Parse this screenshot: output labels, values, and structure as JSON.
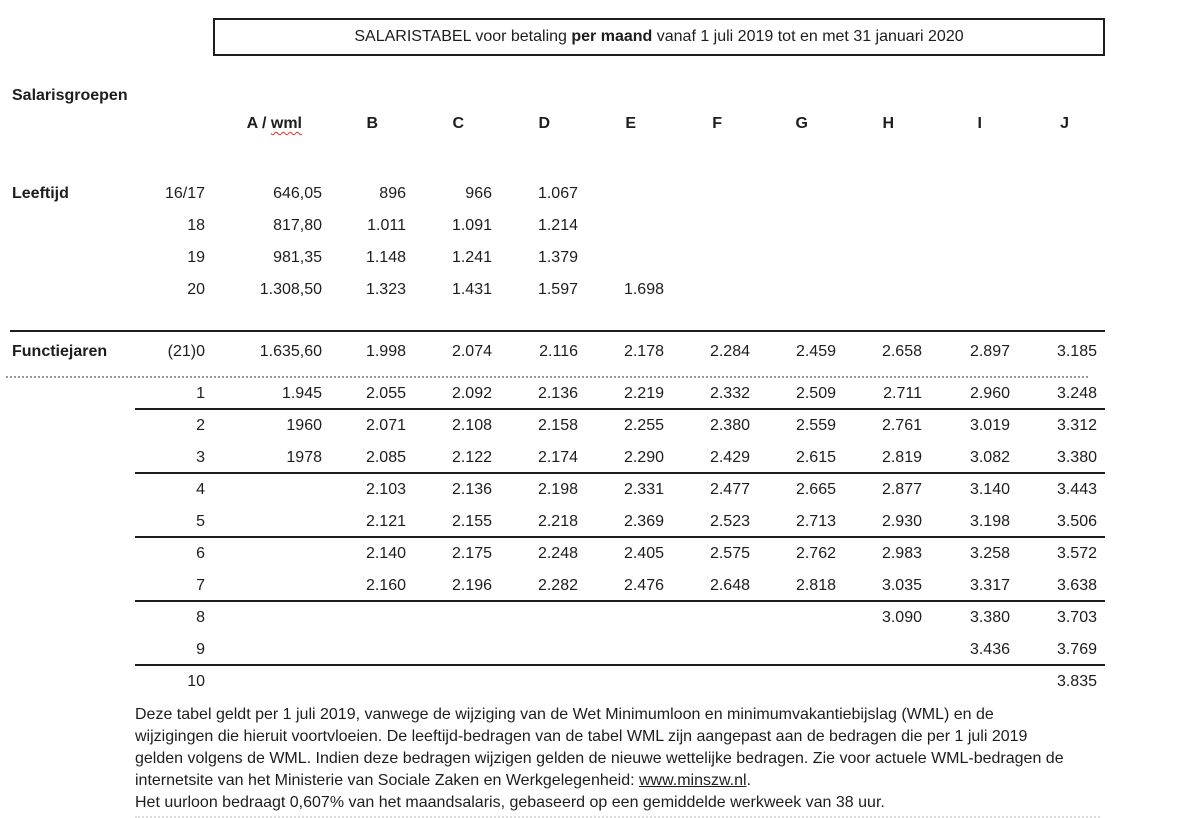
{
  "title": {
    "prefix": "SALARISTABEL voor betaling ",
    "bold": "per maand",
    "suffix": " vanaf 1 juli 2019 tot en met 31 januari 2020"
  },
  "labels": {
    "salarisgroepen": "Salarisgroepen",
    "leeftijd": "Leeftijd",
    "functiejaren": "Functiejaren"
  },
  "columns": {
    "a_prefix": "A / ",
    "a_wml": "wml",
    "letters": [
      "B",
      "C",
      "D",
      "E",
      "F",
      "G",
      "H",
      "I",
      "J"
    ]
  },
  "leeftijd": {
    "rows": [
      {
        "age": "16/17",
        "values": [
          "646,05",
          "896",
          "966",
          "1.067",
          "",
          "",
          "",
          "",
          "",
          ""
        ]
      },
      {
        "age": "18",
        "values": [
          "817,80",
          "1.011",
          "1.091",
          "1.214",
          "",
          "",
          "",
          "",
          "",
          ""
        ]
      },
      {
        "age": "19",
        "values": [
          "981,35",
          "1.148",
          "1.241",
          "1.379",
          "",
          "",
          "",
          "",
          "",
          ""
        ]
      },
      {
        "age": "20",
        "values": [
          "1.308,50",
          "1.323",
          "1.431",
          "1.597",
          "1.698",
          "",
          "",
          "",
          "",
          ""
        ]
      }
    ]
  },
  "functiejaren": {
    "rows": [
      {
        "year": "(21)0",
        "values": [
          "1.635,60",
          "1.998",
          "2.074",
          "2.116",
          "2.178",
          "2.284",
          "2.459",
          "2.658",
          "2.897",
          "3.185"
        ]
      },
      {
        "year": "1",
        "values": [
          "1.945",
          "2.055",
          "2.092",
          "2.136",
          "2.219",
          "2.332",
          "2.509",
          "2.711",
          "2.960",
          "3.248"
        ]
      },
      {
        "year": "2",
        "values": [
          "1960",
          "2.071",
          "2.108",
          "2.158",
          "2.255",
          "2.380",
          "2.559",
          "2.761",
          "3.019",
          "3.312"
        ]
      },
      {
        "year": "3",
        "values": [
          "1978",
          "2.085",
          "2.122",
          "2.174",
          "2.290",
          "2.429",
          "2.615",
          "2.819",
          "3.082",
          "3.380"
        ]
      },
      {
        "year": "4",
        "values": [
          "",
          "2.103",
          "2.136",
          "2.198",
          "2.331",
          "2.477",
          "2.665",
          "2.877",
          "3.140",
          "3.443"
        ]
      },
      {
        "year": "5",
        "values": [
          "",
          "2.121",
          "2.155",
          "2.218",
          "2.369",
          "2.523",
          "2.713",
          "2.930",
          "3.198",
          "3.506"
        ]
      },
      {
        "year": "6",
        "values": [
          "",
          "2.140",
          "2.175",
          "2.248",
          "2.405",
          "2.575",
          "2.762",
          "2.983",
          "3.258",
          "3.572"
        ]
      },
      {
        "year": "7",
        "values": [
          "",
          "2.160",
          "2.196",
          "2.282",
          "2.476",
          "2.648",
          "2.818",
          "3.035",
          "3.317",
          "3.638"
        ]
      },
      {
        "year": "8",
        "values": [
          "",
          "",
          "",
          "",
          "",
          "",
          "",
          "3.090",
          "3.380",
          "3.703"
        ]
      },
      {
        "year": "9",
        "values": [
          "",
          "",
          "",
          "",
          "",
          "",
          "",
          "",
          "3.436",
          "3.769"
        ]
      },
      {
        "year": "10",
        "values": [
          "",
          "",
          "",
          "",
          "",
          "",
          "",
          "",
          "",
          "3.835"
        ]
      }
    ],
    "rule_below_years": [
      "1",
      "3",
      "5",
      "7",
      "9"
    ]
  },
  "footer": {
    "line1": "Deze tabel geldt per 1 juli 2019, vanwege de wijziging van de Wet Minimumloon en minimumvakantiebijslag (WML) en de",
    "line2": "wijzigingen die hieruit voortvloeien. De leeftijd-bedragen van de tabel WML zijn aangepast aan de bedragen die per 1 juli 2019",
    "line3": "gelden volgens de WML. Indien deze bedragen wijzigen gelden de nieuwe wettelijke bedragen. Zie voor actuele WML-bedragen de",
    "line4_prefix": "internetsite van het Ministerie van Sociale Zaken en Werkgelegenheid: ",
    "line4_link": "www.minszw.nl",
    "line4_suffix": ".",
    "line5": "Het uurloon bedraagt 0,607% van het maandsalaris, gebaseerd op een gemiddelde werkweek van 38 uur."
  },
  "colors": {
    "text": "#1d1d1d",
    "rule": "#1d1d1d",
    "dotted_rule": "#9a9a9a",
    "spellcheck_squiggle": "#e0312b"
  }
}
